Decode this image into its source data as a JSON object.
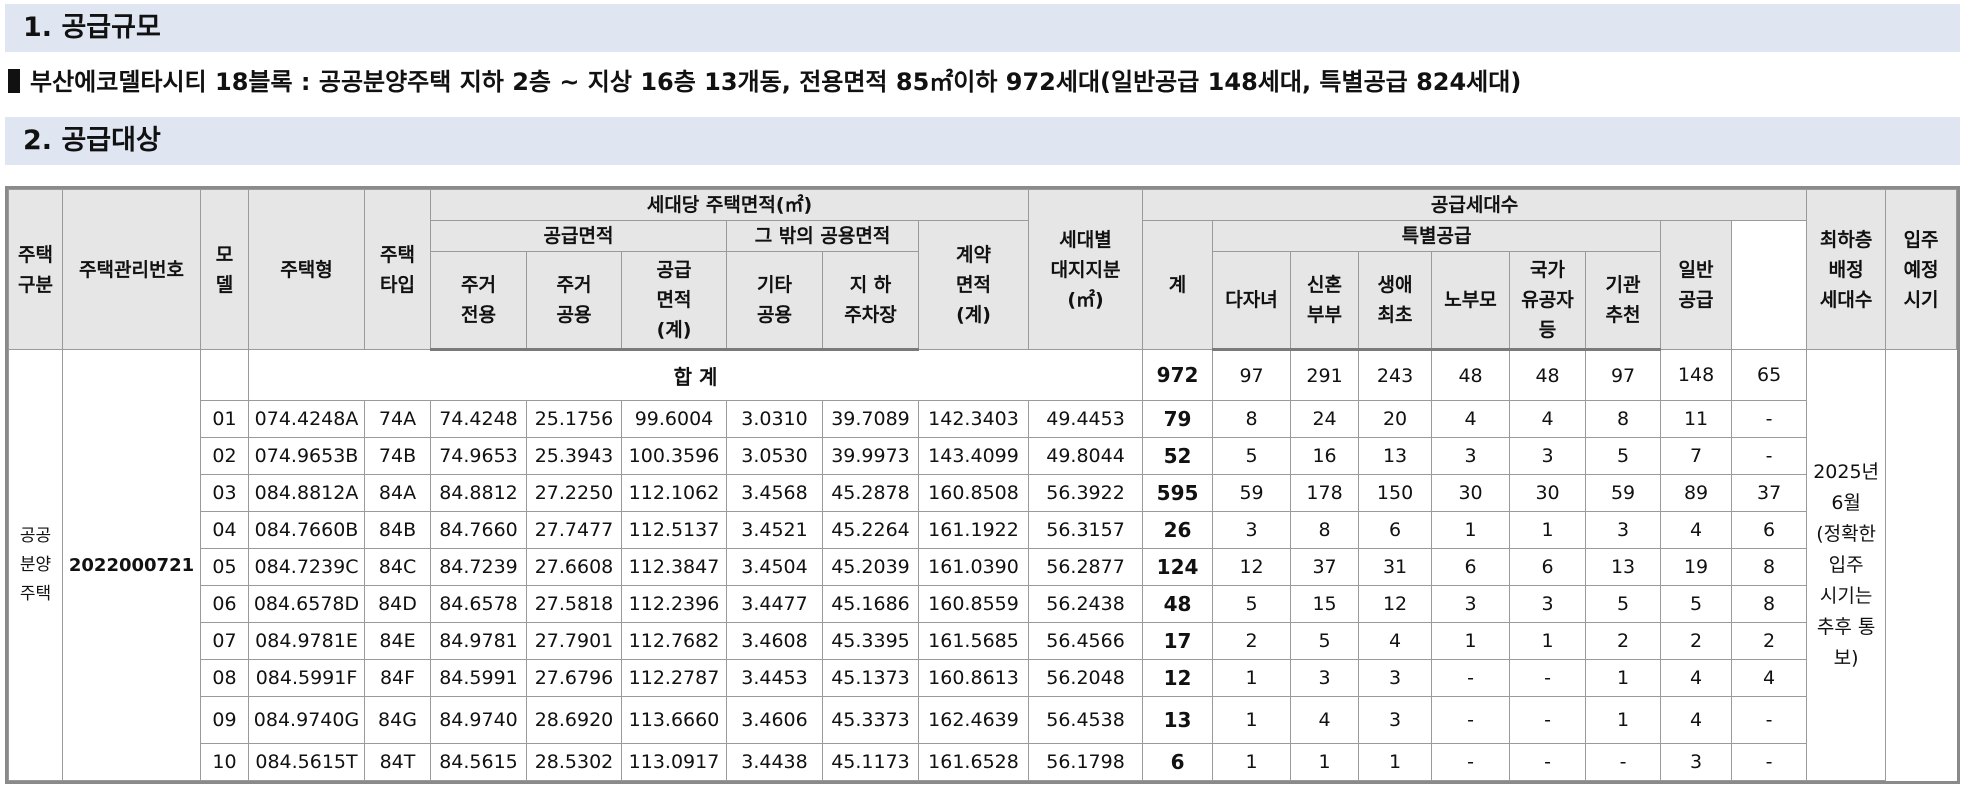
{
  "section1": {
    "title": "1. 공급규모"
  },
  "summary": {
    "text": "부산에코델타시티 18블록 : 공공분양주택 지하 2층 ~ 지상 16층 13개동, 전용면적 85㎡이하 972세대(일반공급 148세대, 특별공급 824세대)"
  },
  "section2": {
    "title": "2. 공급대상"
  },
  "table": {
    "headers": {
      "housing_type": "주택\n구분",
      "mgmt_no": "주택관리번호",
      "model": "모\n델",
      "unit_type": "주택형",
      "type_code": "주택\n타입",
      "area_group": "세대당 주택면적(㎡)",
      "supply_area": "공급면적",
      "other_common": "그 밖의 공용면적",
      "res_exclusive": "주거\n전용",
      "res_common": "주거\n공용",
      "supply_total": "공급\n면적\n(계)",
      "etc_common": "기타\n공용",
      "parking": "지 하\n주차장",
      "contract_area": "계약\n면적\n(계)",
      "land_share": "세대별\n대지지분\n(㎡)",
      "units_group": "공급세대수",
      "total": "계",
      "special": "특별공급",
      "multi_child": "다자녀",
      "newlywed": "신혼\n부부",
      "first_life": "생애\n최초",
      "elderly": "노부모",
      "veterans": "국가\n유공자\n등",
      "institution": "기관\n추천",
      "general": "일반\n공급",
      "lowest_floor": "최하층\n배정\n세대수",
      "move_in": "입주\n예정\n시기"
    },
    "housing_type_value": "공공\n분양\n주택",
    "mgmt_no_value": "2022000721",
    "total_row": {
      "label": "합 계",
      "values": [
        "972",
        "97",
        "291",
        "243",
        "48",
        "48",
        "97",
        "148",
        "65"
      ]
    },
    "move_in_value": "2025년\n6월\n(정확한\n입주\n시기는\n추후 통보)",
    "rows": [
      [
        "01",
        "074.4248A",
        "74A",
        "74.4248",
        "25.1756",
        "99.6004",
        "3.0310",
        "39.7089",
        "142.3403",
        "49.4453",
        "79",
        "8",
        "24",
        "20",
        "4",
        "4",
        "8",
        "11",
        "-"
      ],
      [
        "02",
        "074.9653B",
        "74B",
        "74.9653",
        "25.3943",
        "100.3596",
        "3.0530",
        "39.9973",
        "143.4099",
        "49.8044",
        "52",
        "5",
        "16",
        "13",
        "3",
        "3",
        "5",
        "7",
        "-"
      ],
      [
        "03",
        "084.8812A",
        "84A",
        "84.8812",
        "27.2250",
        "112.1062",
        "3.4568",
        "45.2878",
        "160.8508",
        "56.3922",
        "595",
        "59",
        "178",
        "150",
        "30",
        "30",
        "59",
        "89",
        "37"
      ],
      [
        "04",
        "084.7660B",
        "84B",
        "84.7660",
        "27.7477",
        "112.5137",
        "3.4521",
        "45.2264",
        "161.1922",
        "56.3157",
        "26",
        "3",
        "8",
        "6",
        "1",
        "1",
        "3",
        "4",
        "6"
      ],
      [
        "05",
        "084.7239C",
        "84C",
        "84.7239",
        "27.6608",
        "112.3847",
        "3.4504",
        "45.2039",
        "161.0390",
        "56.2877",
        "124",
        "12",
        "37",
        "31",
        "6",
        "6",
        "13",
        "19",
        "8"
      ],
      [
        "06",
        "084.6578D",
        "84D",
        "84.6578",
        "27.5818",
        "112.2396",
        "3.4477",
        "45.1686",
        "160.8559",
        "56.2438",
        "48",
        "5",
        "15",
        "12",
        "3",
        "3",
        "5",
        "5",
        "8"
      ],
      [
        "07",
        "084.9781E",
        "84E",
        "84.9781",
        "27.7901",
        "112.7682",
        "3.4608",
        "45.3395",
        "161.5685",
        "56.4566",
        "17",
        "2",
        "5",
        "4",
        "1",
        "1",
        "2",
        "2",
        "2"
      ],
      [
        "08",
        "084.5991F",
        "84F",
        "84.5991",
        "27.6796",
        "112.2787",
        "3.4453",
        "45.1373",
        "160.8613",
        "56.2048",
        "12",
        "1",
        "3",
        "3",
        "-",
        "-",
        "1",
        "4",
        "4"
      ],
      [
        "09",
        "084.9740G",
        "84G",
        "84.9740",
        "28.6920",
        "113.6660",
        "3.4606",
        "45.3373",
        "162.4639",
        "56.4538",
        "13",
        "1",
        "4",
        "3",
        "-",
        "-",
        "1",
        "4",
        "-"
      ],
      [
        "10",
        "084.5615T",
        "84T",
        "84.5615",
        "28.5302",
        "113.0917",
        "3.4438",
        "45.1173",
        "161.6528",
        "56.1798",
        "6",
        "1",
        "1",
        "1",
        "-",
        "-",
        "-",
        "3",
        "-"
      ]
    ]
  }
}
